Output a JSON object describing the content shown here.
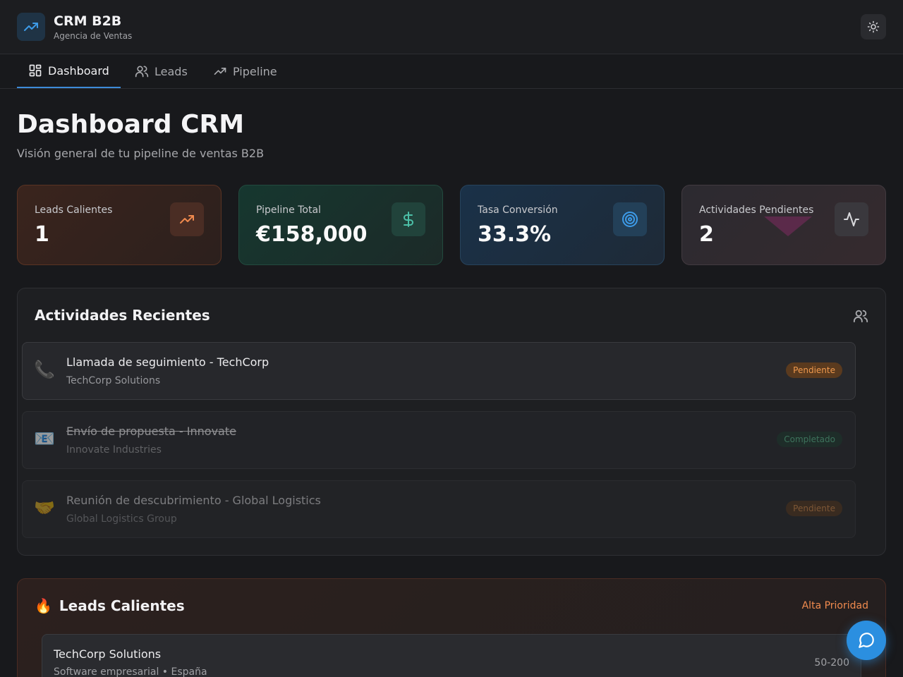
{
  "header": {
    "brand_title": "CRM B2B",
    "brand_subtitle": "Agencia de Ventas",
    "logo_icon": "trending-up-icon",
    "theme_icon": "sun-icon"
  },
  "nav": {
    "tabs": [
      {
        "label": "Dashboard",
        "icon": "grid-icon",
        "active": true
      },
      {
        "label": "Leads",
        "icon": "users-icon",
        "active": false
      },
      {
        "label": "Pipeline",
        "icon": "trending-up-icon",
        "active": false
      }
    ]
  },
  "page": {
    "title": "Dashboard CRM",
    "subtitle": "Visión general de tu pipeline de ventas B2B"
  },
  "stats": [
    {
      "label": "Leads Calientes",
      "value": "1",
      "icon": "trending-up-icon",
      "accent": "#f08a4e"
    },
    {
      "label": "Pipeline Total",
      "value": "€158,000",
      "icon": "dollar-icon",
      "accent": "#4cc0a8"
    },
    {
      "label": "Tasa Conversión",
      "value": "33.3%",
      "icon": "target-icon",
      "accent": "#3d9be8"
    },
    {
      "label": "Actividades Pendientes",
      "value": "2",
      "icon": "activity-icon",
      "accent": "#d8d8dc"
    }
  ],
  "activities": {
    "title": "Actividades Recientes",
    "icon": "users-icon",
    "items": [
      {
        "emoji": "📞",
        "title": "Llamada de seguimiento - TechCorp",
        "company": "TechCorp Solutions",
        "status": "Pendiente",
        "done": false
      },
      {
        "emoji": "📧",
        "title": "Envío de propuesta - Innovate",
        "company": "Innovate Industries",
        "status": "Completado",
        "done": true
      },
      {
        "emoji": "🤝",
        "title": "Reunión de descubrimiento - Global Logistics",
        "company": "Global Logistics Group",
        "status": "Pendiente",
        "done": false
      }
    ]
  },
  "hot_leads": {
    "emoji": "🔥",
    "title": "Leads Calientes",
    "priority": "Alta Prioridad",
    "items": [
      {
        "name": "TechCorp Solutions",
        "meta": "Software empresarial • España",
        "size": "50-200"
      }
    ]
  },
  "chat": {
    "icon": "chat-bubble-icon"
  }
}
